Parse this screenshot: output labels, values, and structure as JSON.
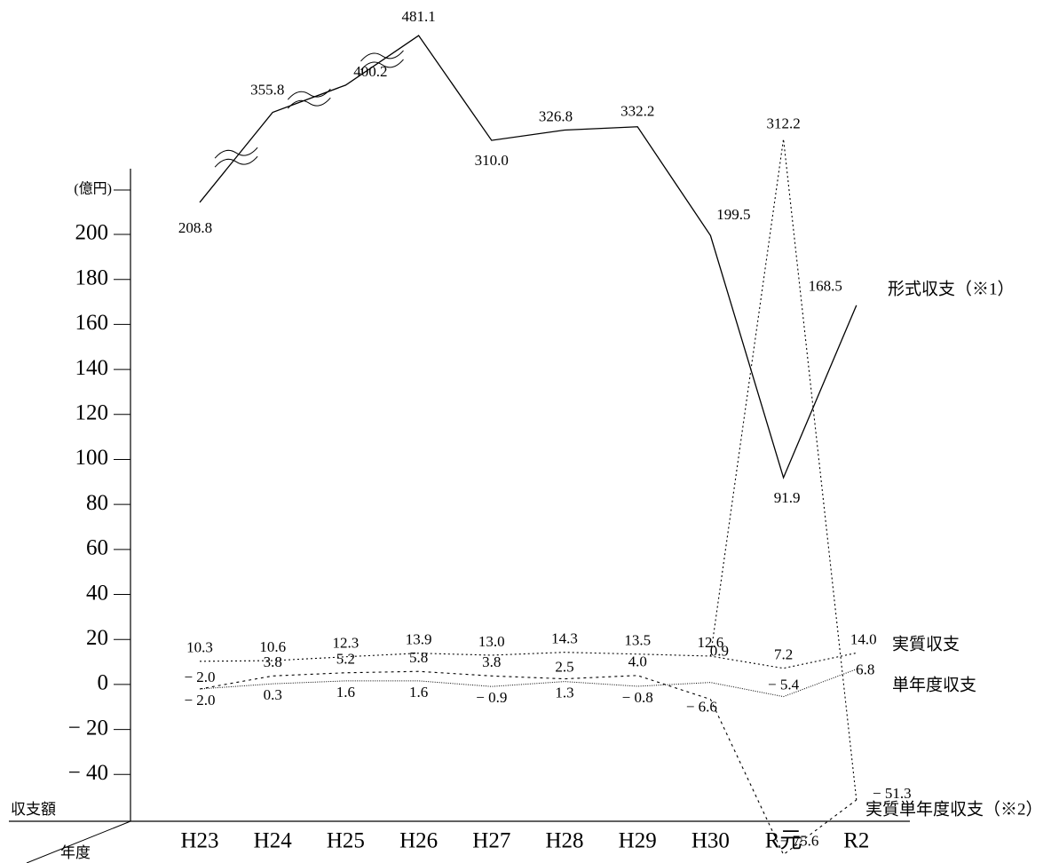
{
  "chart_data": {
    "type": "line",
    "unit_label": "(億円)",
    "corner_labels": [
      "収支額",
      "年度"
    ],
    "categories": [
      "H23",
      "H24",
      "H25",
      "H26",
      "H27",
      "H28",
      "H29",
      "H30",
      "R元",
      "R2"
    ],
    "ylim": [
      -60,
      200
    ],
    "yticks": [
      {
        "value": -40,
        "label": "− 40"
      },
      {
        "value": -20,
        "label": "− 20"
      },
      0,
      20,
      40,
      60,
      80,
      100,
      120,
      140,
      160,
      180,
      200
    ],
    "series": [
      {
        "name": "形式収支（※1）",
        "color": "#000000",
        "line_style": "solid",
        "values": [
          208.8,
          355.8,
          400.2,
          481.1,
          310.0,
          326.8,
          332.2,
          199.5,
          91.9,
          168.5
        ],
        "value_labels": [
          "208.8",
          "355.8",
          "400.2",
          "481.1",
          "310.0",
          "326.8",
          "332.2",
          "199.5",
          "91.9",
          "168.5"
        ]
      },
      {
        "name": "実質収支",
        "color": "#000000",
        "line_style": "dotted",
        "values": [
          10.3,
          10.6,
          12.3,
          13.9,
          13.0,
          14.3,
          13.5,
          12.6,
          7.2,
          14.0
        ],
        "value_labels": [
          "10.3",
          "10.6",
          "12.3",
          "13.9",
          "13.0",
          "14.3",
          "13.5",
          "12.6",
          "7.2",
          "14.0"
        ]
      },
      {
        "name": "単年度収支",
        "color": "#000000",
        "line_style": "thin",
        "values": [
          -2.0,
          0.3,
          1.6,
          1.6,
          -0.9,
          1.3,
          -0.8,
          0.9,
          -5.4,
          6.8
        ],
        "value_labels": [
          "− 2.0",
          "0.3",
          "1.6",
          "1.6",
          "− 0.9",
          "1.3",
          "− 0.8",
          "0.9",
          "− 5.4",
          "6.8"
        ]
      },
      {
        "name": "実質単年度収支（※2）",
        "color": "#000000",
        "line_style": "dashed",
        "values": [
          -2.0,
          3.8,
          5.2,
          5.8,
          3.8,
          2.5,
          4.0,
          -6.6,
          -75.6,
          -51.3
        ],
        "value_labels": [
          "− 2.0",
          "3.8",
          "5.2",
          "5.8",
          "3.8",
          "2.5",
          "4.0",
          "− 6.6",
          "− 75.6",
          "− 51.3"
        ]
      },
      {
        "color": "#000000",
        "line_style": "dotted",
        "values": [
          null,
          null,
          null,
          null,
          null,
          null,
          null,
          12.6,
          312.2,
          -51.3
        ],
        "value_labels": [
          null,
          null,
          null,
          null,
          null,
          null,
          null,
          null,
          "312.2",
          null
        ]
      }
    ]
  }
}
